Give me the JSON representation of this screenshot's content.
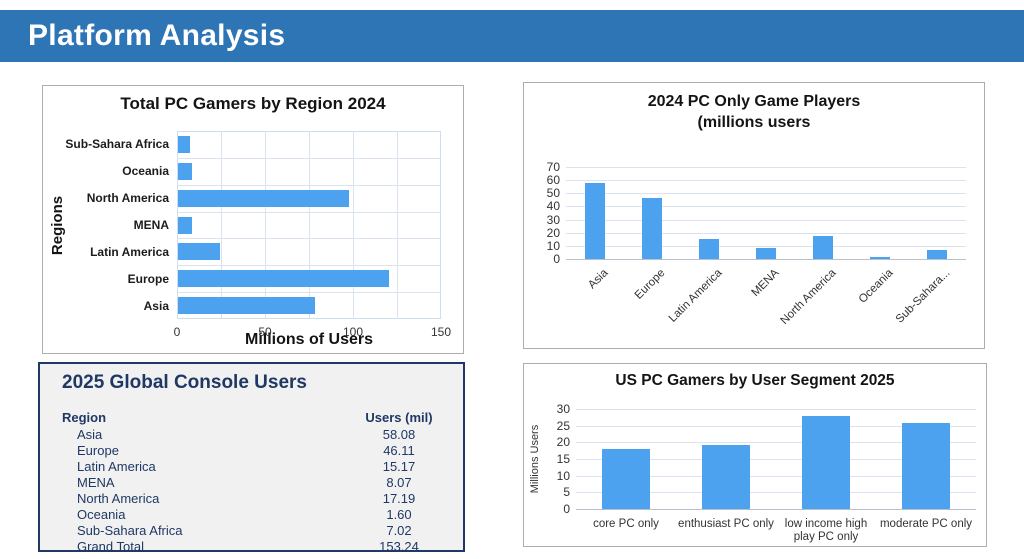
{
  "header": {
    "title": "Platform Analysis"
  },
  "colors": {
    "header_bg": "#2E75B6",
    "bar_fill": "#4DA2F0",
    "navy_text": "#1F3864",
    "grid_line": "#D9E2F1",
    "table_bg": "#F1F1F1"
  },
  "chart_data": [
    {
      "id": "total-pc-gamers-by-region",
      "type": "bar",
      "orientation": "horizontal",
      "title": "Total PC Gamers by Region 2024",
      "xlabel": "Millions of Users",
      "ylabel": "Regions",
      "categories": [
        "Sub-Sahara Africa",
        "Oceania",
        "North America",
        "MENA",
        "Latin America",
        "Europe",
        "Asia"
      ],
      "values": [
        7,
        8,
        97,
        8,
        24,
        120,
        78
      ],
      "xlim": [
        0,
        150
      ],
      "xticks": [
        0,
        50,
        100,
        150
      ],
      "grid": true,
      "legend": "none"
    },
    {
      "id": "pc-only-game-players-2024",
      "type": "bar",
      "orientation": "vertical",
      "title": "2024 PC Only Game Players",
      "subtitle": "(millions users",
      "categories": [
        "Asia",
        "Europe",
        "Latin America",
        "MENA",
        "North America",
        "Oceania",
        "Sub-Sahara..."
      ],
      "values": [
        58.08,
        46.11,
        15.17,
        8.07,
        17.19,
        1.6,
        7.02
      ],
      "ylim": [
        0,
        70
      ],
      "yticks": [
        0,
        10,
        20,
        30,
        40,
        50,
        60,
        70
      ],
      "tick_rotation": -45,
      "grid": true,
      "legend": "none"
    },
    {
      "id": "global-console-users-2025",
      "type": "table",
      "title": "2025 Global Console Users",
      "columns": [
        "Region",
        "Users (mil)"
      ],
      "rows": [
        [
          "Asia",
          "58.08"
        ],
        [
          "Europe",
          "46.11"
        ],
        [
          "Latin America",
          "15.17"
        ],
        [
          "MENA",
          "8.07"
        ],
        [
          "North America",
          "17.19"
        ],
        [
          "Oceania",
          "1.60"
        ],
        [
          "Sub-Sahara Africa",
          "7.02"
        ],
        [
          "Grand Total",
          "153.24"
        ]
      ]
    },
    {
      "id": "us-pc-gamers-by-segment-2025",
      "type": "bar",
      "orientation": "vertical",
      "title": "US PC Gamers by User Segment 2025",
      "ylabel": "Millions Users",
      "categories": [
        "core PC only",
        "enthusiast PC only",
        "low income high play PC only",
        "moderate PC only"
      ],
      "values": [
        18,
        19.3,
        28,
        25.8
      ],
      "ylim": [
        0,
        30
      ],
      "yticks": [
        0,
        5,
        10,
        15,
        20,
        25,
        30
      ],
      "grid": true,
      "legend": "none"
    }
  ]
}
